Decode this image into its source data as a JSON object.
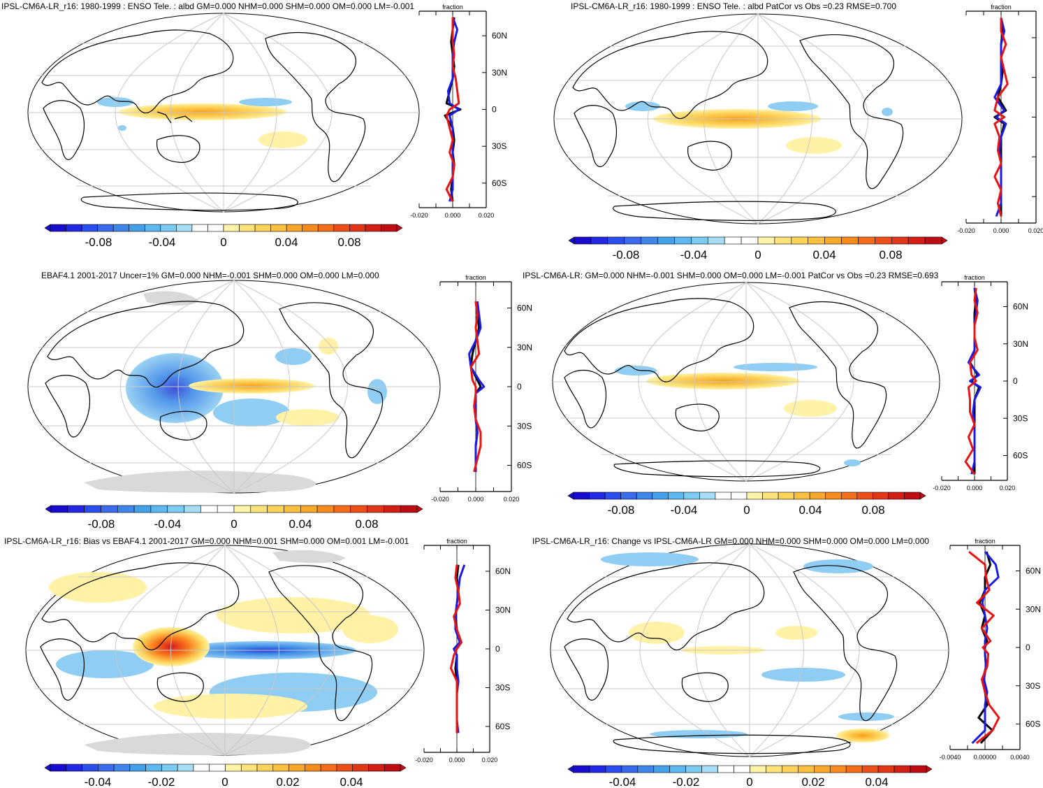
{
  "chart_data": [
    {
      "type": "heatmap",
      "title": "IPSL-CM6A-LR_r16: 1980-1999 : ENSO Tele. : albd GM=0.000 NHM=0.000 SHM=0.000 OM=0.000 LM=-0.001",
      "colorbar_ticks": [
        "-0.08",
        "-0.04",
        "0",
        "0.04",
        "0.08"
      ],
      "zonal": {
        "label": "fraction",
        "xticks": [
          "-0.020",
          "0.000",
          "0.020"
        ],
        "lat_ticks": [
          "60N",
          "30N",
          "0",
          "30S",
          "60S"
        ],
        "lat": [
          75,
          65,
          55,
          45,
          35,
          25,
          15,
          5,
          0,
          -5,
          -15,
          -25,
          -35,
          -45,
          -55,
          -65,
          -75
        ],
        "series": [
          {
            "name": "black",
            "values": [
              0.001,
              0.0,
              -0.001,
              0.0,
              0.001,
              0.0,
              -0.002,
              -0.004,
              0.005,
              -0.005,
              0.0,
              0.001,
              0.0,
              0.001,
              0.0,
              -0.001,
              0.0
            ]
          },
          {
            "name": "blue",
            "values": [
              0.0,
              0.003,
              0.001,
              0.0,
              0.0,
              0.0,
              -0.003,
              -0.002,
              0.004,
              -0.002,
              0.0,
              0.0,
              0.0,
              0.0,
              0.0,
              0.0,
              -0.002
            ]
          },
          {
            "name": "red",
            "values": [
              0.0,
              0.0,
              0.0,
              0.001,
              0.0,
              0.002,
              0.003,
              0.004,
              -0.002,
              -0.004,
              -0.002,
              0.0,
              -0.002,
              0.001,
              0.0,
              -0.004,
              0.0
            ]
          }
        ]
      }
    },
    {
      "type": "heatmap",
      "title": "IPSL-CM6A-LR_r16: 1980-1999 : ENSO Tele. : albd PatCor vs Obs =0.23 RMSE=0.700",
      "colorbar_ticks": [
        "-0.08",
        "-0.04",
        "0",
        "0.04",
        "0.08"
      ],
      "zonal": {
        "label": "fraction",
        "xticks": [
          "-0.020",
          "0.000",
          "0.020"
        ],
        "lat_ticks": [],
        "lat": [
          75,
          65,
          55,
          45,
          35,
          25,
          15,
          5,
          0,
          -5,
          -15,
          -25,
          -35,
          -45,
          -55,
          -65,
          -75
        ],
        "series": [
          {
            "name": "black",
            "values": [
              0.0,
              0.001,
              0.0,
              0.0,
              0.001,
              0.0,
              -0.002,
              0.003,
              -0.004,
              0.002,
              0.0,
              0.0,
              0.0,
              0.0,
              0.0,
              0.0,
              0.0
            ]
          },
          {
            "name": "blue",
            "values": [
              0.0,
              0.002,
              0.0,
              0.0,
              0.0,
              0.0,
              -0.004,
              0.002,
              -0.003,
              0.003,
              0.0,
              -0.001,
              0.0,
              0.0,
              0.0,
              0.0,
              -0.003
            ]
          },
          {
            "name": "red",
            "values": [
              0.0,
              0.0,
              0.003,
              0.0,
              0.002,
              0.004,
              -0.002,
              -0.004,
              0.002,
              -0.004,
              -0.001,
              -0.002,
              0.0,
              -0.004,
              0.0,
              -0.002,
              0.0
            ]
          }
        ]
      }
    },
    {
      "type": "heatmap",
      "title": "EBAF4.1 2001-2017 Uncer=1% GM=0.000 NHM=-0.001 SHM=0.000 OM=0.000 LM=0.000",
      "colorbar_ticks": [
        "-0.08",
        "-0.04",
        "0",
        "0.04",
        "0.08"
      ],
      "zonal": {
        "label": "fraction",
        "xticks": [
          "-0.020",
          "0.000",
          "0.020"
        ],
        "lat_ticks": [
          "60N",
          "30N",
          "0",
          "30S",
          "60S"
        ],
        "lat": [
          65,
          55,
          45,
          35,
          25,
          15,
          5,
          0,
          -5,
          -15,
          -25,
          -35,
          -45,
          -55,
          -65
        ],
        "series": [
          {
            "name": "black",
            "values": [
              0.0,
              0.001,
              0.002,
              0.0,
              -0.002,
              -0.003,
              0.001,
              0.003,
              0.0,
              0.0,
              0.0,
              0.001,
              0.0,
              0.0,
              0.0
            ]
          },
          {
            "name": "blue",
            "values": [
              0.001,
              0.002,
              0.003,
              0.0,
              -0.004,
              -0.003,
              0.002,
              0.005,
              0.0,
              0.0,
              0.0,
              0.001,
              0.0,
              0.0,
              0.0
            ]
          },
          {
            "name": "red",
            "values": [
              0.0,
              0.001,
              0.0,
              0.001,
              0.002,
              -0.003,
              -0.002,
              0.0,
              0.0,
              -0.001,
              0.0,
              0.003,
              0.003,
              0.001,
              -0.001
            ]
          }
        ]
      }
    },
    {
      "type": "heatmap",
      "title": "IPSL-CM6A-LR: GM=0.000 NHM=-0.001 SHM=0.000 OM=0.000 LM=-0.001 PatCor vs Obs =0.23 RMSE=0.693",
      "colorbar_ticks": [
        "-0.08",
        "-0.04",
        "0",
        "0.04",
        "0.08"
      ],
      "zonal": {
        "label": "fraction",
        "xticks": [
          "-0.020",
          "0.000",
          "0.020"
        ],
        "lat_ticks": [
          "60N",
          "30N",
          "0",
          "30S",
          "60S"
        ],
        "lat": [
          75,
          65,
          55,
          45,
          35,
          25,
          15,
          5,
          0,
          -5,
          -15,
          -25,
          -35,
          -45,
          -55,
          -65,
          -75
        ],
        "series": [
          {
            "name": "black",
            "values": [
              0.0,
              0.001,
              0.0,
              0.0,
              0.0,
              0.0,
              -0.003,
              0.002,
              -0.002,
              0.003,
              0.0,
              0.0,
              0.0,
              0.0,
              0.0,
              0.0,
              0.0
            ]
          },
          {
            "name": "blue",
            "values": [
              0.0,
              0.002,
              0.001,
              0.0,
              0.0,
              0.0,
              -0.004,
              0.003,
              -0.003,
              0.004,
              0.0,
              -0.001,
              0.0,
              0.0,
              0.0,
              0.0,
              -0.002
            ]
          },
          {
            "name": "red",
            "values": [
              0.001,
              0.0,
              0.002,
              0.0,
              0.0,
              0.002,
              -0.003,
              -0.002,
              0.001,
              -0.004,
              -0.003,
              -0.003,
              0.0,
              -0.004,
              -0.001,
              -0.006,
              0.0
            ]
          }
        ]
      }
    },
    {
      "type": "heatmap",
      "title": "IPSL-CM6A-LR_r16: Bias vs EBAF4.1 2001-2017 GM=0.000 NHM=0.001 SHM=0.000 OM=0.001 LM=-0.001",
      "colorbar_ticks": [
        "-0.04",
        "-0.02",
        "0",
        "0.02",
        "0.04"
      ],
      "zonal": {
        "label": "fraction",
        "xticks": [
          "-0.020",
          "0.000",
          "0.020"
        ],
        "lat_ticks": [
          "60N",
          "30N",
          "0",
          "30S",
          "60S"
        ],
        "lat": [
          65,
          55,
          45,
          35,
          25,
          15,
          5,
          0,
          -5,
          -15,
          -25,
          -35,
          -45,
          -55,
          -65
        ],
        "series": [
          {
            "name": "black",
            "values": [
              0.001,
              0.0,
              0.001,
              0.0,
              -0.001,
              0.0,
              0.002,
              -0.002,
              0.0,
              -0.001,
              0.0,
              0.0,
              0.0,
              0.0,
              0.0
            ]
          },
          {
            "name": "blue",
            "values": [
              0.005,
              0.002,
              0.001,
              0.0,
              -0.001,
              -0.001,
              0.002,
              -0.002,
              0.0,
              0.0,
              0.001,
              0.0,
              0.0,
              0.0,
              0.001
            ]
          },
          {
            "name": "red",
            "values": [
              0.0,
              -0.001,
              0.001,
              0.002,
              -0.002,
              0.0,
              0.003,
              0.0,
              -0.002,
              -0.004,
              0.0,
              0.0,
              0.0,
              0.0,
              0.0
            ]
          }
        ]
      }
    },
    {
      "type": "heatmap",
      "title": "IPSL-CM6A-LR_r16: Change vs IPSL-CM6A-LR GM=0.000 NHM=0.000 SHM=0.000 OM=0.000 LM=0.000",
      "colorbar_ticks": [
        "-0.04",
        "-0.02",
        "0",
        "0.02",
        "0.04"
      ],
      "zonal": {
        "label": "fraction",
        "xticks": [
          "-0.0040",
          "0.00000",
          "0.0040"
        ],
        "lat_ticks": [
          "60N",
          "30N",
          "0",
          "30S",
          "60S"
        ],
        "lat": [
          75,
          65,
          55,
          45,
          35,
          25,
          15,
          5,
          0,
          -5,
          -15,
          -25,
          -35,
          -45,
          -55,
          -65,
          -75
        ],
        "series": [
          {
            "name": "black",
            "values": [
              0.0003,
              0.001,
              0.0,
              0.0,
              -0.001,
              0.0,
              -0.0006,
              0.0004,
              0.0,
              0.0,
              0.0002,
              -0.0004,
              0.0,
              0.0004,
              -0.0012,
              0.0014,
              -0.0008
            ]
          },
          {
            "name": "blue",
            "values": [
              0.0,
              0.002,
              0.0025,
              0.0,
              -0.0005,
              0.0,
              0.0004,
              0.0,
              0.0,
              0.0,
              0.0002,
              -0.0002,
              0.0004,
              0.0,
              0.0,
              0.0,
              -0.0024
            ]
          },
          {
            "name": "red",
            "values": [
              -0.003,
              0.0,
              0.0002,
              0.0008,
              -0.0015,
              0.0016,
              -0.0006,
              0.001,
              -0.0004,
              0.0006,
              0.0004,
              -0.0006,
              0.0,
              0.0008,
              0.0026,
              0.0014,
              -0.0016
            ]
          }
        ]
      }
    }
  ]
}
